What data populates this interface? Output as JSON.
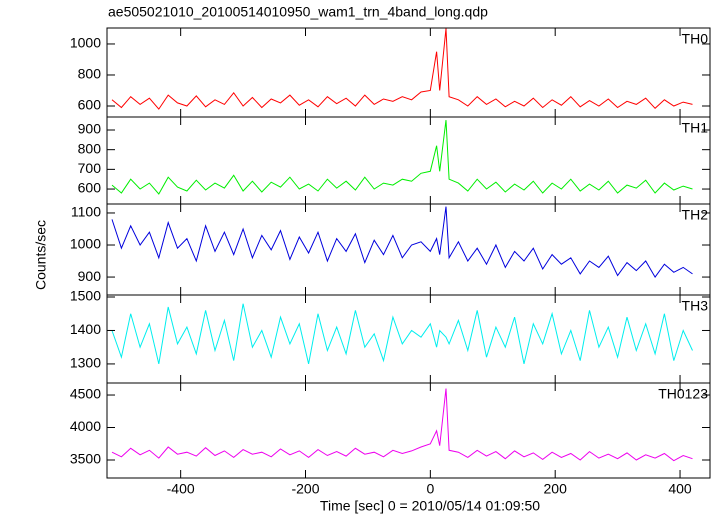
{
  "chart_data": {
    "type": "line",
    "title": "ae505021010_20100514010950_wam1_trn_4band_long.qdp",
    "xlabel": "Time [sec] 0 = 2010/05/14 01:09:50",
    "ylabel": "Counts/sec",
    "xlim": [
      -518,
      448
    ],
    "xticks": [
      -400,
      -200,
      0,
      200,
      400
    ],
    "x": [
      -510,
      -495,
      -480,
      -465,
      -450,
      -435,
      -420,
      -405,
      -390,
      -375,
      -360,
      -345,
      -330,
      -315,
      -300,
      -285,
      -270,
      -255,
      -240,
      -225,
      -210,
      -195,
      -180,
      -165,
      -150,
      -135,
      -120,
      -105,
      -90,
      -75,
      -60,
      -45,
      -30,
      -15,
      0,
      10,
      15,
      25,
      30,
      45,
      60,
      75,
      90,
      105,
      120,
      135,
      150,
      165,
      180,
      195,
      210,
      225,
      240,
      255,
      270,
      285,
      300,
      315,
      330,
      345,
      360,
      375,
      390,
      405,
      420
    ],
    "series": [
      {
        "name": "TH0",
        "color": "#ff0000",
        "ylim": [
          529,
          1103
        ],
        "yticks": [
          600,
          800,
          1000
        ],
        "values": [
          640,
          590,
          660,
          610,
          650,
          580,
          670,
          620,
          600,
          665,
          595,
          640,
          610,
          685,
          600,
          655,
          590,
          645,
          620,
          670,
          605,
          640,
          595,
          660,
          615,
          650,
          600,
          670,
          610,
          645,
          630,
          660,
          640,
          690,
          700,
          950,
          700,
          1100,
          660,
          640,
          600,
          660,
          610,
          645,
          595,
          630,
          600,
          650,
          590,
          640,
          605,
          660,
          595,
          635,
          600,
          645,
          590,
          630,
          610,
          650,
          585,
          640,
          600,
          625,
          610
        ]
      },
      {
        "name": "TH1",
        "color": "#00ee00",
        "ylim": [
          524,
          966
        ],
        "yticks": [
          600,
          700,
          800,
          900
        ],
        "values": [
          620,
          580,
          650,
          600,
          630,
          575,
          660,
          610,
          590,
          645,
          595,
          630,
          605,
          670,
          590,
          640,
          585,
          635,
          610,
          660,
          600,
          625,
          590,
          650,
          605,
          640,
          595,
          660,
          600,
          630,
          620,
          650,
          640,
          680,
          690,
          820,
          690,
          950,
          650,
          630,
          590,
          650,
          600,
          635,
          585,
          625,
          595,
          640,
          580,
          630,
          600,
          650,
          590,
          625,
          595,
          640,
          580,
          620,
          605,
          645,
          580,
          630,
          595,
          615,
          600
        ]
      },
      {
        "name": "TH2",
        "color": "#0000dd",
        "ylim": [
          844,
          1128
        ],
        "yticks": [
          900,
          1000,
          1100
        ],
        "values": [
          1080,
          990,
          1060,
          1000,
          1040,
          960,
          1070,
          990,
          1020,
          950,
          1060,
          980,
          1040,
          970,
          1050,
          960,
          1030,
          985,
          1045,
          955,
          1025,
          975,
          1040,
          950,
          1020,
          980,
          1035,
          945,
          1015,
          970,
          1030,
          960,
          1000,
          1010,
          980,
          1020,
          970,
          1120,
          960,
          1010,
          950,
          990,
          940,
          1000,
          930,
          980,
          950,
          990,
          925,
          970,
          940,
          960,
          910,
          950,
          930,
          965,
          905,
          945,
          920,
          950,
          900,
          940,
          915,
          930,
          910
        ]
      },
      {
        "name": "TH3",
        "color": "#00eeee",
        "ylim": [
          1243,
          1506
        ],
        "yticks": [
          1300,
          1400,
          1500
        ],
        "values": [
          1400,
          1320,
          1450,
          1350,
          1420,
          1300,
          1470,
          1360,
          1410,
          1330,
          1460,
          1340,
          1430,
          1310,
          1480,
          1350,
          1400,
          1320,
          1440,
          1360,
          1420,
          1300,
          1450,
          1340,
          1410,
          1330,
          1460,
          1350,
          1390,
          1310,
          1440,
          1360,
          1400,
          1380,
          1420,
          1350,
          1400,
          1380,
          1360,
          1430,
          1340,
          1460,
          1320,
          1410,
          1350,
          1440,
          1300,
          1420,
          1360,
          1450,
          1330,
          1400,
          1310,
          1460,
          1350,
          1410,
          1320,
          1440,
          1340,
          1420,
          1330,
          1450,
          1310,
          1400,
          1340
        ]
      },
      {
        "name": "TH0123",
        "color": "#ee00ee",
        "ylim": [
          3223,
          4685
        ],
        "yticks": [
          3500,
          4000,
          4500
        ],
        "values": [
          3620,
          3550,
          3680,
          3580,
          3650,
          3530,
          3700,
          3590,
          3620,
          3560,
          3690,
          3570,
          3640,
          3540,
          3660,
          3590,
          3620,
          3550,
          3670,
          3580,
          3640,
          3540,
          3660,
          3570,
          3630,
          3560,
          3680,
          3590,
          3620,
          3550,
          3650,
          3600,
          3640,
          3700,
          3750,
          3950,
          3720,
          4600,
          3650,
          3620,
          3540,
          3650,
          3560,
          3630,
          3520,
          3640,
          3550,
          3610,
          3510,
          3620,
          3540,
          3600,
          3500,
          3630,
          3530,
          3590,
          3520,
          3610,
          3500,
          3580,
          3530,
          3600,
          3490,
          3570,
          3520
        ]
      }
    ]
  }
}
